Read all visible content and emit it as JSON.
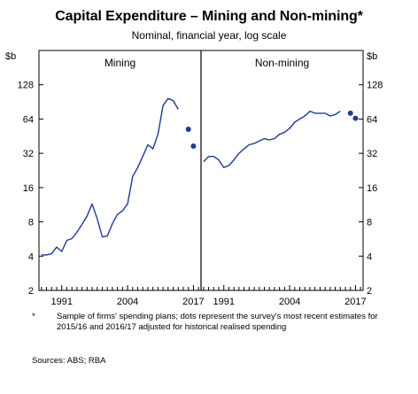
{
  "title": "Capital Expenditure – Mining and Non-mining*",
  "subtitle": "Nominal, financial year, log scale",
  "footnote_marker": "*",
  "footnote": "Sample of firms' spending plans; dots represent the survey's most recent estimates for 2015/16 and 2016/17 adjusted for historical realised spending",
  "sources": "Sources: ABS; RBA",
  "colors": {
    "line": "#1f3a93",
    "dot": "#1f3a93",
    "axis": "#000000"
  },
  "chart_data": [
    {
      "type": "line",
      "panel_title": "Mining",
      "unit_label": "$b",
      "scale": "log",
      "ylim": [
        2,
        256
      ],
      "yticks": [
        2,
        4,
        8,
        16,
        32,
        64,
        128
      ],
      "xlim": [
        1986.5,
        2018.5
      ],
      "xtick_labels": [
        "1991",
        "2004",
        "2017"
      ],
      "x": [
        1987,
        1988,
        1989,
        1990,
        1991,
        1992,
        1993,
        1994,
        1995,
        1996,
        1997,
        1998,
        1999,
        2000,
        2001,
        2002,
        2003,
        2004,
        2005,
        2006,
        2007,
        2008,
        2009,
        2010,
        2011,
        2012,
        2013,
        2014,
        2015
      ],
      "values": [
        4.1,
        4.1,
        4.2,
        4.8,
        4.4,
        5.5,
        5.7,
        6.5,
        7.6,
        9,
        11.5,
        8.5,
        5.9,
        6,
        7.7,
        9.3,
        10,
        11.5,
        20,
        24,
        30,
        38,
        35,
        47,
        84,
        97,
        93,
        78,
        null
      ],
      "survey_x": [
        2016,
        2017
      ],
      "survey_values": [
        52,
        37
      ]
    },
    {
      "type": "line",
      "panel_title": "Non-mining",
      "unit_label": "$b",
      "scale": "log",
      "ylim": [
        2,
        256
      ],
      "yticks": [
        2,
        4,
        8,
        16,
        32,
        64,
        128
      ],
      "xlim": [
        1986.5,
        2018.5
      ],
      "xtick_labels": [
        "1991",
        "2004",
        "2017"
      ],
      "x": [
        1987,
        1988,
        1989,
        1990,
        1991,
        1992,
        1993,
        1994,
        1995,
        1996,
        1997,
        1998,
        1999,
        2000,
        2001,
        2002,
        2003,
        2004,
        2005,
        2006,
        2007,
        2008,
        2009,
        2010,
        2011,
        2012,
        2013,
        2014,
        2015
      ],
      "values": [
        27,
        30,
        30,
        28,
        24,
        25,
        28,
        32,
        35,
        38,
        39,
        41,
        43,
        42,
        43,
        47,
        49,
        53,
        60,
        64,
        68,
        75,
        72,
        72,
        72,
        68,
        70,
        75,
        null
      ],
      "survey_x": [
        2016,
        2017
      ],
      "survey_values": [
        72,
        65
      ]
    }
  ]
}
